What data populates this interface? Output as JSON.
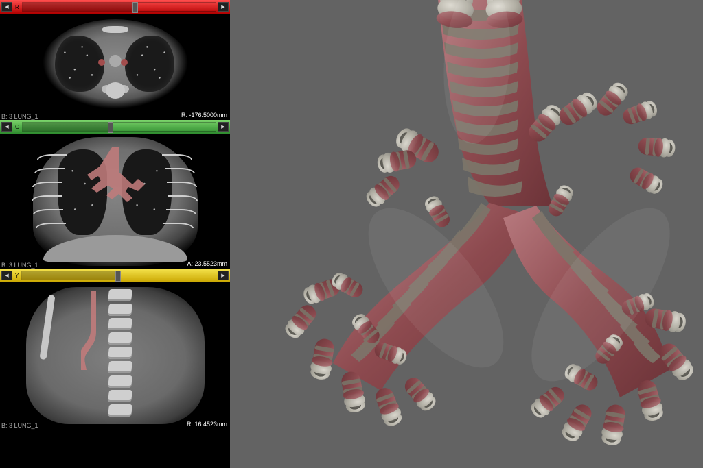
{
  "views": {
    "axial": {
      "header_color": "#d11f1f",
      "slider": {
        "left_btn": "◀",
        "right_btn": "▶",
        "fill_pct": 58,
        "thumb_pct": 57
      },
      "measurement": "R: -176.5000mm",
      "label_below": "B: 3 LUNG_1",
      "axis_hint_left": "R",
      "segmentation_overlay_color": "#a34d4d"
    },
    "coronal": {
      "header_color": "#2e8b2e",
      "slider": {
        "left_btn": "◀",
        "right_btn": "▶",
        "fill_pct": 44,
        "thumb_pct": 44
      },
      "measurement": "A: 23.5523mm",
      "label_below": "B: 3 LUNG_1",
      "axis_hint_left": "G",
      "segmentation_overlay_color": "#c07b7b"
    },
    "sagittal": {
      "header_color": "#c9a500",
      "slider": {
        "left_btn": "◀",
        "right_btn": "▶",
        "fill_pct": 48,
        "thumb_pct": 48
      },
      "measurement": "R: 16.4523mm",
      "label_below": "B: 3 LUNG_1",
      "axis_hint_left": "Y",
      "segmentation_overlay_color": "#c07b7b"
    }
  },
  "render3d": {
    "background_color": "#636363",
    "mucosa_color": "#8d4a4f",
    "mucosa_highlight": "#b87a7f",
    "cartilage_color": "#a7a49a",
    "cartilage_inner": "#c9c7bf",
    "lumen_color": "#8a887f",
    "trachea_width": 120,
    "branching_levels": 4,
    "ring_count_trachea": 12
  },
  "colors": {
    "panel_bg": "#000000",
    "ct_soft_tissue": "#7e7e7e",
    "ct_bone": "#cfcfcf",
    "ct_lung": "#181818",
    "text": "#aaaaaa"
  }
}
